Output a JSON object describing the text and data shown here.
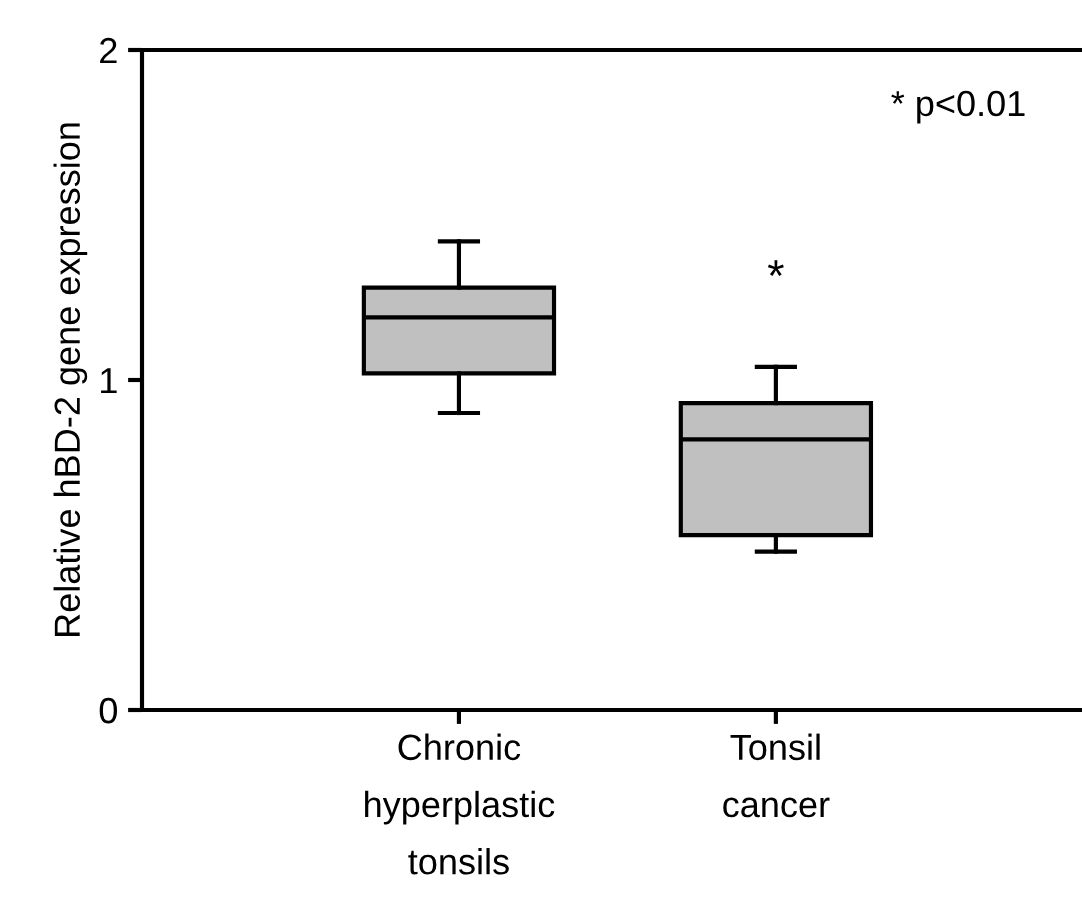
{
  "chart_data": {
    "type": "box",
    "ylabel": "Relative hBD-2 gene expression",
    "categories": [
      "Chronic\nhyperplastic\ntonsils",
      "Tonsil\ncancer"
    ],
    "boxes": [
      {
        "low": 0.9,
        "q1": 1.02,
        "median": 1.19,
        "q3": 1.28,
        "high": 1.42
      },
      {
        "low": 0.48,
        "q1": 0.53,
        "median": 0.82,
        "q3": 0.93,
        "high": 1.04
      }
    ],
    "color": "#c0c0c0",
    "ylim": [
      0,
      2
    ],
    "yticks": [
      0,
      1,
      2
    ],
    "grid": false,
    "annotations": [
      "* p<0.01",
      "*"
    ]
  }
}
